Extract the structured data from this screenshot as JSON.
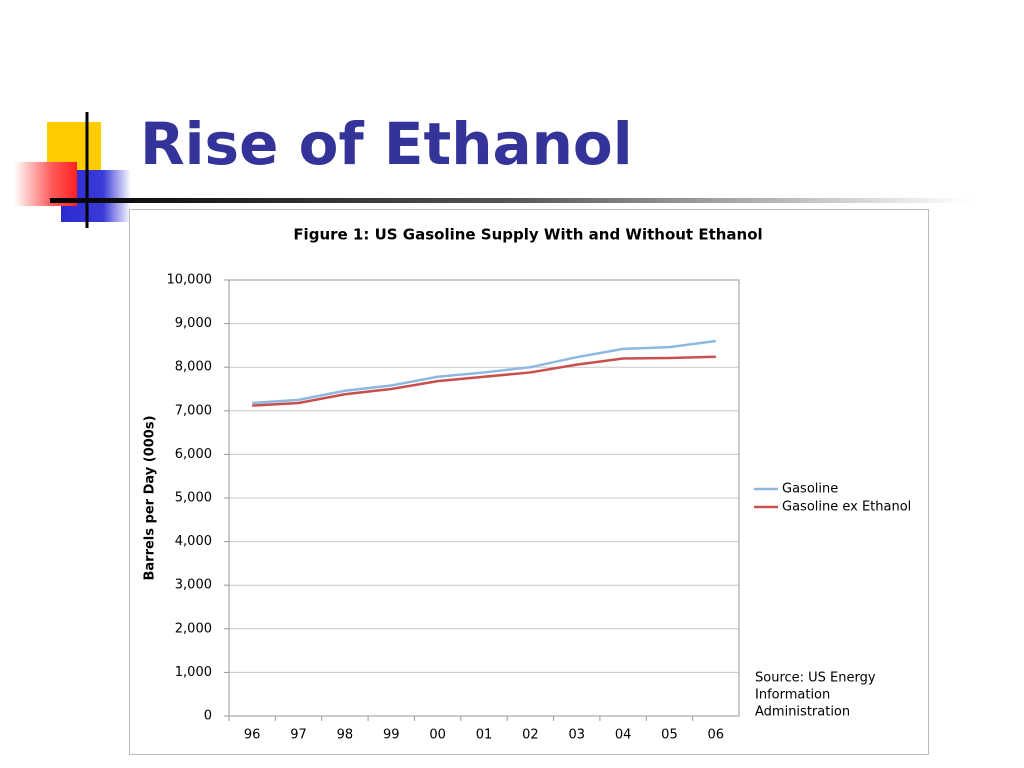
{
  "title": "Rise of Ethanol",
  "chart_data": {
    "type": "line",
    "title": "Figure 1: US Gasoline Supply With and Without Ethanol",
    "ylabel": "Barrels per Day (000s)",
    "categories": [
      "96",
      "97",
      "98",
      "99",
      "00",
      "01",
      "02",
      "03",
      "04",
      "05",
      "06"
    ],
    "series": [
      {
        "name": "Gasoline",
        "color": "#8db8e0",
        "values": [
          7180,
          7250,
          7460,
          7580,
          7780,
          7880,
          8000,
          8230,
          8420,
          8460,
          8600
        ]
      },
      {
        "name": "Gasoline ex Ethanol",
        "color": "#c8504c",
        "values": [
          7120,
          7180,
          7380,
          7500,
          7680,
          7780,
          7880,
          8060,
          8200,
          8210,
          8240
        ]
      }
    ],
    "ylim": [
      0,
      10000
    ],
    "yticks": [
      0,
      {
        "value": 1000,
        "label": "1,000"
      },
      {
        "value": 2000,
        "label": "2,000"
      },
      {
        "value": 3000,
        "label": "3,000"
      },
      {
        "value": 4000,
        "label": "4,000"
      },
      {
        "value": 5000,
        "label": "5,000"
      },
      {
        "value": 6000,
        "label": "6,000"
      },
      {
        "value": 7000,
        "label": "7,000"
      },
      {
        "value": 8000,
        "label": "8,000"
      },
      {
        "value": 9000,
        "label": "9,000"
      },
      {
        "value": 10000,
        "label": "10,000"
      }
    ],
    "grid": true,
    "annotation": [
      "Source: US Energy",
      "Information",
      "Administration"
    ]
  }
}
